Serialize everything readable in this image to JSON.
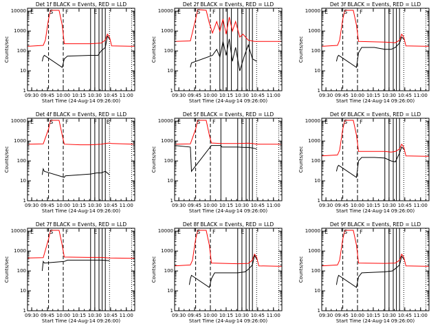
{
  "figure": {
    "xlabel": "Start Time (24-Aug-14 09:26:00)",
    "ylabel": "Counts/sec",
    "xticks": [
      "09:30",
      "09:45",
      "10:00",
      "10:15",
      "10:30",
      "10:45",
      "11:00"
    ],
    "yticks": [
      "1",
      "10",
      "100",
      "1000",
      "10000"
    ]
  },
  "colors": {
    "events": "#000000",
    "lld": "#ff0000",
    "axes": "#000000"
  },
  "chart_data": [
    {
      "type": "line",
      "title": "Det 1f BLACK = Events, RED = LLD",
      "markers": [
        "E",
        "S",
        "F",
        "E"
      ],
      "x_unit": "minutes since 09:26:00",
      "xlim": [
        0,
        102
      ],
      "ylim": [
        1,
        14000
      ],
      "yscale": "log",
      "dash_lines": [
        20,
        34
      ],
      "dot_lines": [
        78,
        99
      ],
      "solid_lines": [
        60,
        64,
        68,
        71,
        74
      ],
      "series": [
        {
          "name": "LLD",
          "color": "#ff0000",
          "x": [
            0,
            15,
            17,
            20,
            22,
            30,
            33,
            35,
            60,
            70,
            74,
            76,
            78,
            80,
            102
          ],
          "values": [
            170,
            190,
            350,
            4000,
            11000,
            11000,
            2000,
            230,
            230,
            250,
            350,
            700,
            500,
            180,
            170
          ]
        },
        {
          "name": "Events",
          "color": "#000000",
          "x": [
            14,
            15,
            16,
            33,
            35,
            38,
            60,
            67,
            70,
            74,
            76,
            78
          ],
          "values": [
            30,
            50,
            60,
            15,
            40,
            55,
            60,
            60,
            100,
            150,
            550,
            400
          ]
        }
      ]
    },
    {
      "type": "line",
      "title": "Det 2f BLACK = Events, RED = LLD",
      "markers": [
        "E",
        "S",
        "F",
        "E"
      ],
      "x_unit": "minutes since 09:26:00",
      "xlim": [
        0,
        102
      ],
      "ylim": [
        1,
        14000
      ],
      "yscale": "log",
      "dash_lines": [
        20,
        34
      ],
      "dot_lines": [
        78,
        99
      ],
      "solid_lines": [
        43,
        46,
        50,
        54,
        60,
        64,
        68,
        71,
        74
      ],
      "series": [
        {
          "name": "LLD",
          "color": "#ff0000",
          "x": [
            0,
            15,
            20,
            22,
            30,
            33,
            36,
            40,
            43,
            46,
            49,
            52,
            55,
            58,
            62,
            65,
            70,
            76,
            102
          ],
          "values": [
            300,
            320,
            4000,
            12000,
            11000,
            2500,
            800,
            3000,
            1000,
            4000,
            700,
            5000,
            1000,
            3000,
            500,
            700,
            350,
            300,
            300
          ]
        },
        {
          "name": "Events",
          "color": "#000000",
          "x": [
            15,
            16,
            36,
            40,
            43,
            46,
            49,
            52,
            55,
            58,
            62,
            66,
            70,
            74,
            78
          ],
          "values": [
            15,
            25,
            60,
            120,
            50,
            300,
            60,
            400,
            30,
            150,
            10,
            50,
            200,
            40,
            30
          ]
        }
      ]
    },
    {
      "type": "line",
      "title": "Det 3f BLACK = Events, RED = LLD",
      "markers": [
        "E",
        "S",
        "F",
        "E"
      ],
      "x_unit": "minutes since 09:26:00",
      "xlim": [
        0,
        102
      ],
      "ylim": [
        1,
        14000
      ],
      "yscale": "log",
      "dash_lines": [
        20,
        34
      ],
      "dot_lines": [
        78,
        99
      ],
      "solid_lines": [
        60,
        64,
        68,
        71,
        74
      ],
      "series": [
        {
          "name": "LLD",
          "color": "#ff0000",
          "x": [
            0,
            15,
            17,
            20,
            22,
            30,
            33,
            35,
            60,
            70,
            74,
            76,
            78,
            80,
            102
          ],
          "values": [
            170,
            190,
            350,
            4000,
            11000,
            11000,
            2000,
            300,
            280,
            260,
            350,
            700,
            500,
            180,
            170
          ]
        },
        {
          "name": "Events",
          "color": "#000000",
          "x": [
            14,
            15,
            16,
            33,
            35,
            38,
            50,
            60,
            66,
            70,
            74,
            76,
            78
          ],
          "values": [
            30,
            50,
            60,
            15,
            80,
            150,
            150,
            120,
            120,
            150,
            250,
            500,
            400
          ]
        }
      ]
    },
    {
      "type": "line",
      "title": "Det 4f BLACK = Events, RED = LLD",
      "markers": [
        "E",
        "S",
        "F",
        "F",
        "E"
      ],
      "x_unit": "minutes since 09:26:00",
      "xlim": [
        0,
        102
      ],
      "ylim": [
        1,
        14000
      ],
      "yscale": "log",
      "dash_lines": [
        20,
        34
      ],
      "dot_lines": [
        78,
        99
      ],
      "solid_lines": [
        60,
        64,
        68,
        71,
        74
      ],
      "series": [
        {
          "name": "LLD",
          "color": "#ff0000",
          "x": [
            0,
            15,
            20,
            22,
            30,
            33,
            35,
            50,
            60,
            70,
            74,
            78,
            80,
            102
          ],
          "values": [
            700,
            720,
            4000,
            11000,
            11000,
            2000,
            700,
            650,
            650,
            700,
            750,
            800,
            750,
            700
          ]
        },
        {
          "name": "Events",
          "color": "#000000",
          "x": [
            14,
            15,
            16,
            35,
            36,
            50,
            60,
            66,
            70,
            74,
            78
          ],
          "values": [
            20,
            40,
            30,
            15,
            18,
            20,
            22,
            25,
            25,
            30,
            20
          ]
        }
      ]
    },
    {
      "type": "line",
      "title": "Det 5f BLACK = Events, RED = LLD",
      "markers": [
        "E",
        "S",
        "F",
        "E"
      ],
      "x_unit": "minutes since 09:26:00",
      "xlim": [
        0,
        102
      ],
      "ylim": [
        1,
        14000
      ],
      "yscale": "log",
      "dash_lines": [
        20,
        34
      ],
      "dot_lines": [
        78,
        99
      ],
      "solid_lines": [
        44,
        60,
        64,
        68,
        71,
        74
      ],
      "series": [
        {
          "name": "LLD",
          "color": "#ff0000",
          "x": [
            0,
            15,
            20,
            22,
            30,
            33,
            35,
            44,
            60,
            70,
            74,
            78,
            102
          ],
          "values": [
            700,
            720,
            4000,
            11000,
            11000,
            2000,
            800,
            750,
            750,
            780,
            750,
            700,
            700
          ]
        },
        {
          "name": "Events",
          "color": "#000000",
          "x": [
            0,
            15,
            16,
            35,
            44,
            45,
            60,
            66,
            70,
            74,
            78
          ],
          "values": [
            600,
            500,
            30,
            600,
            600,
            500,
            500,
            480,
            480,
            450,
            400
          ]
        }
      ]
    },
    {
      "type": "line",
      "title": "Det 6f BLACK = Events, RED = LLD",
      "markers": [
        "E",
        "S",
        "F",
        "E"
      ],
      "x_unit": "minutes since 09:26:00",
      "xlim": [
        0,
        102
      ],
      "ylim": [
        1,
        14000
      ],
      "yscale": "log",
      "dash_lines": [
        20,
        34
      ],
      "dot_lines": [
        78,
        99
      ],
      "solid_lines": [
        60,
        64,
        68,
        71,
        74
      ],
      "series": [
        {
          "name": "LLD",
          "color": "#ff0000",
          "x": [
            0,
            15,
            17,
            20,
            22,
            30,
            33,
            35,
            60,
            66,
            70,
            74,
            76,
            78,
            80,
            102
          ],
          "values": [
            180,
            200,
            350,
            4000,
            11000,
            11000,
            2000,
            300,
            300,
            280,
            300,
            400,
            700,
            500,
            180,
            170
          ]
        },
        {
          "name": "Events",
          "color": "#000000",
          "x": [
            14,
            15,
            16,
            33,
            35,
            38,
            50,
            60,
            66,
            70,
            74,
            76,
            78
          ],
          "values": [
            30,
            50,
            60,
            15,
            100,
            150,
            150,
            140,
            100,
            90,
            250,
            500,
            400
          ]
        }
      ]
    },
    {
      "type": "line",
      "title": "Det 7f BLACK = Events, RED = LLD",
      "markers": [
        "E",
        "S",
        "F",
        "E"
      ],
      "x_unit": "minutes since 09:26:00",
      "xlim": [
        0,
        102
      ],
      "ylim": [
        1,
        14000
      ],
      "yscale": "log",
      "dash_lines": [
        20,
        34
      ],
      "dot_lines": [
        78,
        99
      ],
      "solid_lines": [
        60,
        64,
        68,
        71,
        74
      ],
      "series": [
        {
          "name": "LLD",
          "color": "#ff0000",
          "x": [
            0,
            15,
            20,
            22,
            30,
            33,
            35,
            60,
            70,
            78,
            102
          ],
          "values": [
            450,
            470,
            4000,
            11000,
            11000,
            2000,
            500,
            480,
            480,
            450,
            430
          ]
        },
        {
          "name": "Events",
          "color": "#000000",
          "x": [
            14,
            15,
            16,
            35,
            38,
            60,
            70,
            78
          ],
          "values": [
            100,
            300,
            250,
            300,
            350,
            350,
            350,
            330
          ]
        }
      ]
    },
    {
      "type": "line",
      "title": "Det 8f BLACK = Events, RED = LLD",
      "markers": [
        "E",
        "S",
        "F",
        "E"
      ],
      "x_unit": "minutes since 09:26:00",
      "xlim": [
        0,
        102
      ],
      "ylim": [
        1,
        14000
      ],
      "yscale": "log",
      "dash_lines": [
        20,
        34
      ],
      "dot_lines": [
        78,
        99
      ],
      "solid_lines": [
        60,
        64,
        68,
        71,
        74
      ],
      "series": [
        {
          "name": "LLD",
          "color": "#ff0000",
          "x": [
            0,
            15,
            17,
            20,
            22,
            30,
            33,
            35,
            60,
            70,
            74,
            76,
            78,
            80,
            102
          ],
          "values": [
            180,
            200,
            350,
            4000,
            11000,
            11000,
            2000,
            250,
            230,
            240,
            350,
            700,
            500,
            180,
            170
          ]
        },
        {
          "name": "Events",
          "color": "#000000",
          "x": [
            14,
            15,
            16,
            33,
            35,
            38,
            60,
            67,
            70,
            74,
            76,
            78
          ],
          "values": [
            20,
            40,
            60,
            15,
            40,
            80,
            80,
            90,
            120,
            200,
            600,
            400
          ]
        }
      ]
    },
    {
      "type": "line",
      "title": "Det 9f BLACK = Events, RED = LLD",
      "markers": [
        "E",
        "S",
        "F",
        "E"
      ],
      "x_unit": "minutes since 09:26:00",
      "xlim": [
        0,
        102
      ],
      "ylim": [
        1,
        14000
      ],
      "yscale": "log",
      "dash_lines": [
        20,
        34
      ],
      "dot_lines": [
        78,
        99
      ],
      "solid_lines": [
        60,
        64,
        68,
        71,
        74
      ],
      "series": [
        {
          "name": "LLD",
          "color": "#ff0000",
          "x": [
            0,
            15,
            17,
            20,
            22,
            30,
            33,
            35,
            60,
            70,
            74,
            76,
            78,
            80,
            102
          ],
          "values": [
            180,
            200,
            350,
            4000,
            11000,
            11000,
            2000,
            250,
            240,
            250,
            350,
            700,
            500,
            180,
            170
          ]
        },
        {
          "name": "Events",
          "color": "#000000",
          "x": [
            14,
            15,
            16,
            33,
            35,
            38,
            60,
            67,
            70,
            74,
            76,
            78
          ],
          "values": [
            20,
            40,
            60,
            15,
            50,
            80,
            90,
            100,
            130,
            200,
            550,
            400
          ]
        }
      ]
    }
  ]
}
